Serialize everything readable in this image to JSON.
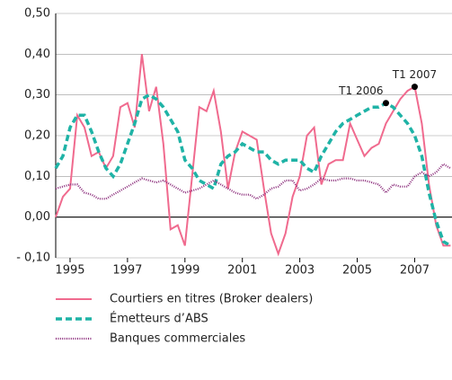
{
  "chart_data": {
    "type": "line",
    "x": [
      1994.5,
      1994.75,
      1995,
      1995.25,
      1995.5,
      1995.75,
      1996,
      1996.25,
      1996.5,
      1996.75,
      1997,
      1997.25,
      1997.5,
      1997.75,
      1998,
      1998.25,
      1998.5,
      1998.75,
      1999,
      1999.25,
      1999.5,
      1999.75,
      2000,
      2000.25,
      2000.5,
      2000.75,
      2001,
      2001.25,
      2001.5,
      2001.75,
      2002,
      2002.25,
      2002.5,
      2002.75,
      2003,
      2003.25,
      2003.5,
      2003.75,
      2004,
      2004.25,
      2004.5,
      2004.75,
      2005,
      2005.25,
      2005.5,
      2005.75,
      2006,
      2006.25,
      2006.5,
      2006.75,
      2007,
      2007.25,
      2007.5,
      2007.75,
      2008,
      2008.25
    ],
    "series": [
      {
        "name": "Courtiers en titres (Broker dealers)",
        "color": "#f06a8e",
        "linestyle": "solid",
        "values": [
          0,
          0.05,
          0.07,
          0.25,
          0.22,
          0.15,
          0.16,
          0.12,
          0.15,
          0.27,
          0.28,
          0.22,
          0.4,
          0.26,
          0.32,
          0.18,
          -0.03,
          -0.02,
          -0.07,
          0.1,
          0.27,
          0.26,
          0.31,
          0.21,
          0.07,
          0.16,
          0.21,
          0.2,
          0.19,
          0.07,
          -0.04,
          -0.09,
          -0.04,
          0.05,
          0.1,
          0.2,
          0.22,
          0.08,
          0.13,
          0.14,
          0.14,
          0.23,
          0.19,
          0.15,
          0.17,
          0.18,
          0.23,
          0.26,
          0.29,
          0.31,
          0.32,
          0.23,
          0.08,
          -0.02,
          -0.07,
          -0.07
        ]
      },
      {
        "name": "Émetteurs d’ABS",
        "color": "#1fb3a6",
        "linestyle": "dashed",
        "values": [
          0.12,
          0.15,
          0.22,
          0.25,
          0.25,
          0.21,
          0.16,
          0.12,
          0.1,
          0.13,
          0.18,
          0.23,
          0.29,
          0.3,
          0.29,
          0.27,
          0.24,
          0.21,
          0.14,
          0.12,
          0.09,
          0.08,
          0.07,
          0.13,
          0.15,
          0.16,
          0.18,
          0.17,
          0.16,
          0.16,
          0.14,
          0.13,
          0.14,
          0.14,
          0.14,
          0.12,
          0.11,
          0.15,
          0.18,
          0.21,
          0.23,
          0.24,
          0.25,
          0.26,
          0.27,
          0.27,
          0.28,
          0.27,
          0.25,
          0.23,
          0.2,
          0.15,
          0.06,
          -0.01,
          -0.06,
          -0.07
        ]
      },
      {
        "name": "Banques commerciales",
        "color": "#8a2b7a",
        "linestyle": "dotted",
        "values": [
          0.07,
          0.075,
          0.08,
          0.08,
          0.06,
          0.055,
          0.045,
          0.045,
          0.055,
          0.065,
          0.075,
          0.085,
          0.095,
          0.09,
          0.085,
          0.09,
          0.08,
          0.07,
          0.06,
          0.065,
          0.07,
          0.08,
          0.09,
          0.08,
          0.07,
          0.06,
          0.055,
          0.055,
          0.045,
          0.055,
          0.07,
          0.075,
          0.09,
          0.09,
          0.065,
          0.07,
          0.08,
          0.095,
          0.09,
          0.09,
          0.095,
          0.095,
          0.09,
          0.09,
          0.085,
          0.08,
          0.06,
          0.08,
          0.075,
          0.075,
          0.1,
          0.11,
          0.1,
          0.11,
          0.13,
          0.12
        ]
      }
    ],
    "annotations": [
      {
        "text": "T1 2006",
        "x": 2006,
        "y": 0.28
      },
      {
        "text": "T1 2007",
        "x": 2007,
        "y": 0.32
      }
    ],
    "xlim": [
      1994.5,
      2008.3
    ],
    "xticks": [
      1995,
      1997,
      1999,
      2001,
      2003,
      2005,
      2007
    ],
    "ylim": [
      -0.1,
      0.5
    ],
    "yticks": [
      {
        "value": -0.1,
        "label": "- 0,10"
      },
      {
        "value": 0,
        "label": "0,00"
      },
      {
        "value": 0.1,
        "label": "0,10"
      },
      {
        "value": 0.2,
        "label": "0,20"
      },
      {
        "value": 0.3,
        "label": "0,30"
      },
      {
        "value": 0.4,
        "label": "0,40"
      },
      {
        "value": 0.5,
        "label": "0,50"
      }
    ],
    "grid": true
  }
}
